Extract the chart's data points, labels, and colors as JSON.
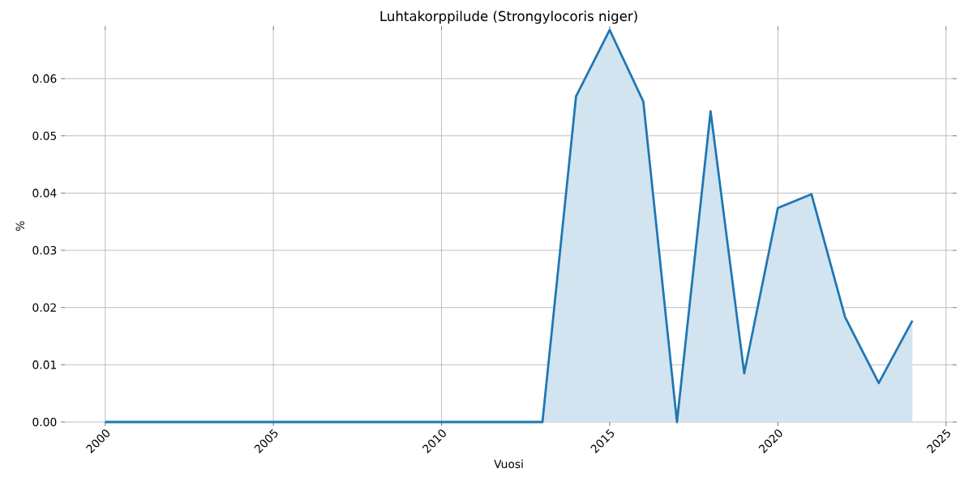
{
  "chart_data": {
    "type": "area",
    "title": "Luhtakorppilude (Strongylocoris niger)",
    "xlabel": "Vuosi",
    "ylabel": "%",
    "x": [
      2000,
      2001,
      2002,
      2003,
      2004,
      2005,
      2006,
      2007,
      2008,
      2009,
      2010,
      2011,
      2012,
      2013,
      2014,
      2015,
      2016,
      2017,
      2018,
      2019,
      2020,
      2021,
      2022,
      2023,
      2024
    ],
    "series": [
      {
        "color": "#1f77b4",
        "values": [
          0,
          0,
          0,
          0,
          0,
          0,
          0,
          0,
          0,
          0,
          0,
          0,
          0,
          0,
          0.0569,
          0.0685,
          0.056,
          0,
          0.0543,
          0.0085,
          0.0374,
          0.0398,
          0.0183,
          0.0068,
          0.0177
        ]
      }
    ],
    "xlim": [
      1998.8,
      2025.2
    ],
    "ylim": [
      0,
      0.0685
    ],
    "xticks": [
      2000,
      2005,
      2010,
      2015,
      2020,
      2025
    ],
    "yticks": [
      {
        "value": 0,
        "label": "0.00"
      },
      {
        "value": 0.01,
        "label": "0.01"
      },
      {
        "value": 0.02,
        "label": "0.02"
      },
      {
        "value": 0.03,
        "label": "0.03"
      },
      {
        "value": 0.04,
        "label": "0.04"
      },
      {
        "value": 0.05,
        "label": "0.05"
      },
      {
        "value": 0.06,
        "label": "0.06"
      }
    ],
    "grid": true
  }
}
